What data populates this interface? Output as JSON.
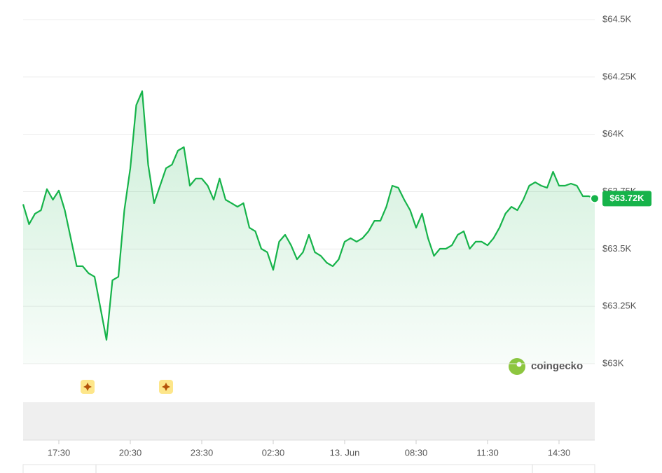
{
  "chart_data": {
    "type": "line",
    "x": [
      "16:00",
      "16:15",
      "16:30",
      "16:45",
      "17:00",
      "17:15",
      "17:30",
      "17:45",
      "18:00",
      "18:15",
      "18:30",
      "18:45",
      "19:00",
      "19:15",
      "19:30",
      "19:45",
      "20:00",
      "20:15",
      "20:30",
      "20:45",
      "21:00",
      "21:15",
      "21:30",
      "21:45",
      "22:00",
      "22:15",
      "22:30",
      "22:45",
      "23:00",
      "23:15",
      "23:30",
      "23:45",
      "00:00",
      "00:15",
      "00:30",
      "00:45",
      "01:00",
      "01:15",
      "01:30",
      "01:45",
      "02:00",
      "02:15",
      "02:30",
      "02:45",
      "03:00",
      "03:15",
      "03:30",
      "03:45",
      "04:00",
      "04:15",
      "04:30",
      "04:45",
      "05:00",
      "05:15",
      "05:30",
      "05:45",
      "06:00",
      "06:15",
      "06:30",
      "06:45",
      "07:00",
      "07:15",
      "07:30",
      "07:45",
      "08:00",
      "08:15",
      "08:30",
      "08:45",
      "09:00",
      "09:15",
      "09:30",
      "09:45",
      "10:00",
      "10:15",
      "10:30",
      "10:45",
      "11:00",
      "11:15",
      "11:30",
      "11:45",
      "12:00",
      "12:15",
      "12:30",
      "12:45",
      "13:00",
      "13:15",
      "13:30",
      "13:45",
      "14:00",
      "14:15",
      "14:30",
      "14:45",
      "15:00",
      "15:15",
      "15:30",
      "15:45",
      "16:00"
    ],
    "series": [
      {
        "color": "#16b34a",
        "values": [
          63695,
          63608,
          63654,
          63669,
          63761,
          63715,
          63755,
          63669,
          63547,
          63425,
          63425,
          63394,
          63379,
          63241,
          63104,
          63364,
          63379,
          63669,
          63852,
          64127,
          64188,
          63868,
          63700,
          63776,
          63852,
          63868,
          63929,
          63944,
          63776,
          63807,
          63807,
          63776,
          63715,
          63807,
          63715,
          63700,
          63684,
          63700,
          63593,
          63577,
          63501,
          63486,
          63409,
          63532,
          63562,
          63516,
          63455,
          63486,
          63562,
          63486,
          63470,
          63440,
          63425,
          63455,
          63532,
          63547,
          63532,
          63547,
          63577,
          63623,
          63623,
          63684,
          63776,
          63767,
          63715,
          63669,
          63593,
          63654,
          63547,
          63470,
          63501,
          63501,
          63516,
          63562,
          63577,
          63501,
          63532,
          63532,
          63516,
          63547,
          63593,
          63654,
          63684,
          63669,
          63715,
          63776,
          63791,
          63776,
          63767,
          63837,
          63776,
          63776,
          63785,
          63776,
          63730,
          63730,
          63720
        ]
      }
    ],
    "price_label": {
      "value": 63720,
      "label": "$63.72K"
    },
    "ylim": [
      63000,
      64500
    ],
    "yticks": [
      {
        "value": 63000,
        "label": "$63K"
      },
      {
        "value": 63250,
        "label": "$63.25K"
      },
      {
        "value": 63500,
        "label": "$63.5K"
      },
      {
        "value": 63750,
        "label": "$63.75K"
      },
      {
        "value": 64000,
        "label": "$64K"
      },
      {
        "value": 64250,
        "label": "$64.25K"
      },
      {
        "value": 64500,
        "label": "$64.5K"
      }
    ],
    "xticks": [
      "17:30",
      "20:30",
      "23:30",
      "02:30",
      {
        "value": "05:30",
        "label": "13. Jun"
      },
      "08:30",
      "11:30",
      "14:30"
    ],
    "grid": true,
    "watermark": "coingecko"
  }
}
